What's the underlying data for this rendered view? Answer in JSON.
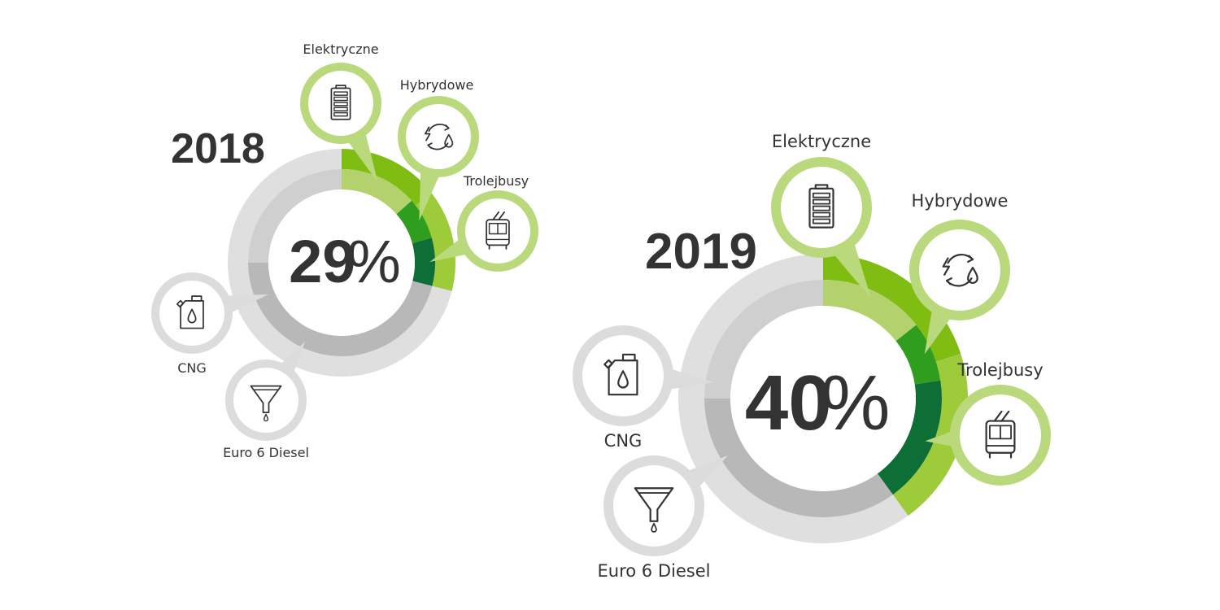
{
  "colors": {
    "electric": "#b3d26d",
    "hybrid": "#2f9e1f",
    "trolley": "#0d6e36",
    "outer_green": "#7fbd12",
    "outer_green_light": "#9dcb3a",
    "rest_outer": "#dfdfdf",
    "rest_inner": "#b8b8b8",
    "rest_inner_light": "#cfcfcf",
    "callout_green": "#b9d97c",
    "callout_gray": "#dcdcdc",
    "text": "#333333"
  },
  "chart_data": [
    {
      "type": "pie",
      "year_label": "2018",
      "percent_label": "29",
      "percent_sign": "%",
      "total_percent": 29,
      "segments": [
        {
          "name": "Elektryczne",
          "icon": "battery-icon",
          "value": 13
        },
        {
          "name": "Hybrydowe",
          "icon": "hybrid-cycle-icon",
          "value": 7
        },
        {
          "name": "Trolejbusy",
          "icon": "trolleybus-icon",
          "value": 8
        }
      ],
      "gray_labels": [
        {
          "name": "CNG",
          "icon": "fuel-canister-icon"
        },
        {
          "name": "Euro 6 Diesel",
          "icon": "funnel-icon"
        }
      ]
    },
    {
      "type": "pie",
      "year_label": "2019",
      "percent_label": "40",
      "percent_sign": "%",
      "total_percent": 40,
      "segments": [
        {
          "name": "Elektryczne",
          "icon": "battery-icon",
          "value": 14
        },
        {
          "name": "Hybrydowe",
          "icon": "hybrid-cycle-icon",
          "value": 8
        },
        {
          "name": "Trolejbusy",
          "icon": "trolleybus-icon",
          "value": 17
        }
      ],
      "gray_labels": [
        {
          "name": "CNG",
          "icon": "fuel-canister-icon"
        },
        {
          "name": "Euro 6 Diesel",
          "icon": "funnel-icon"
        }
      ]
    }
  ]
}
